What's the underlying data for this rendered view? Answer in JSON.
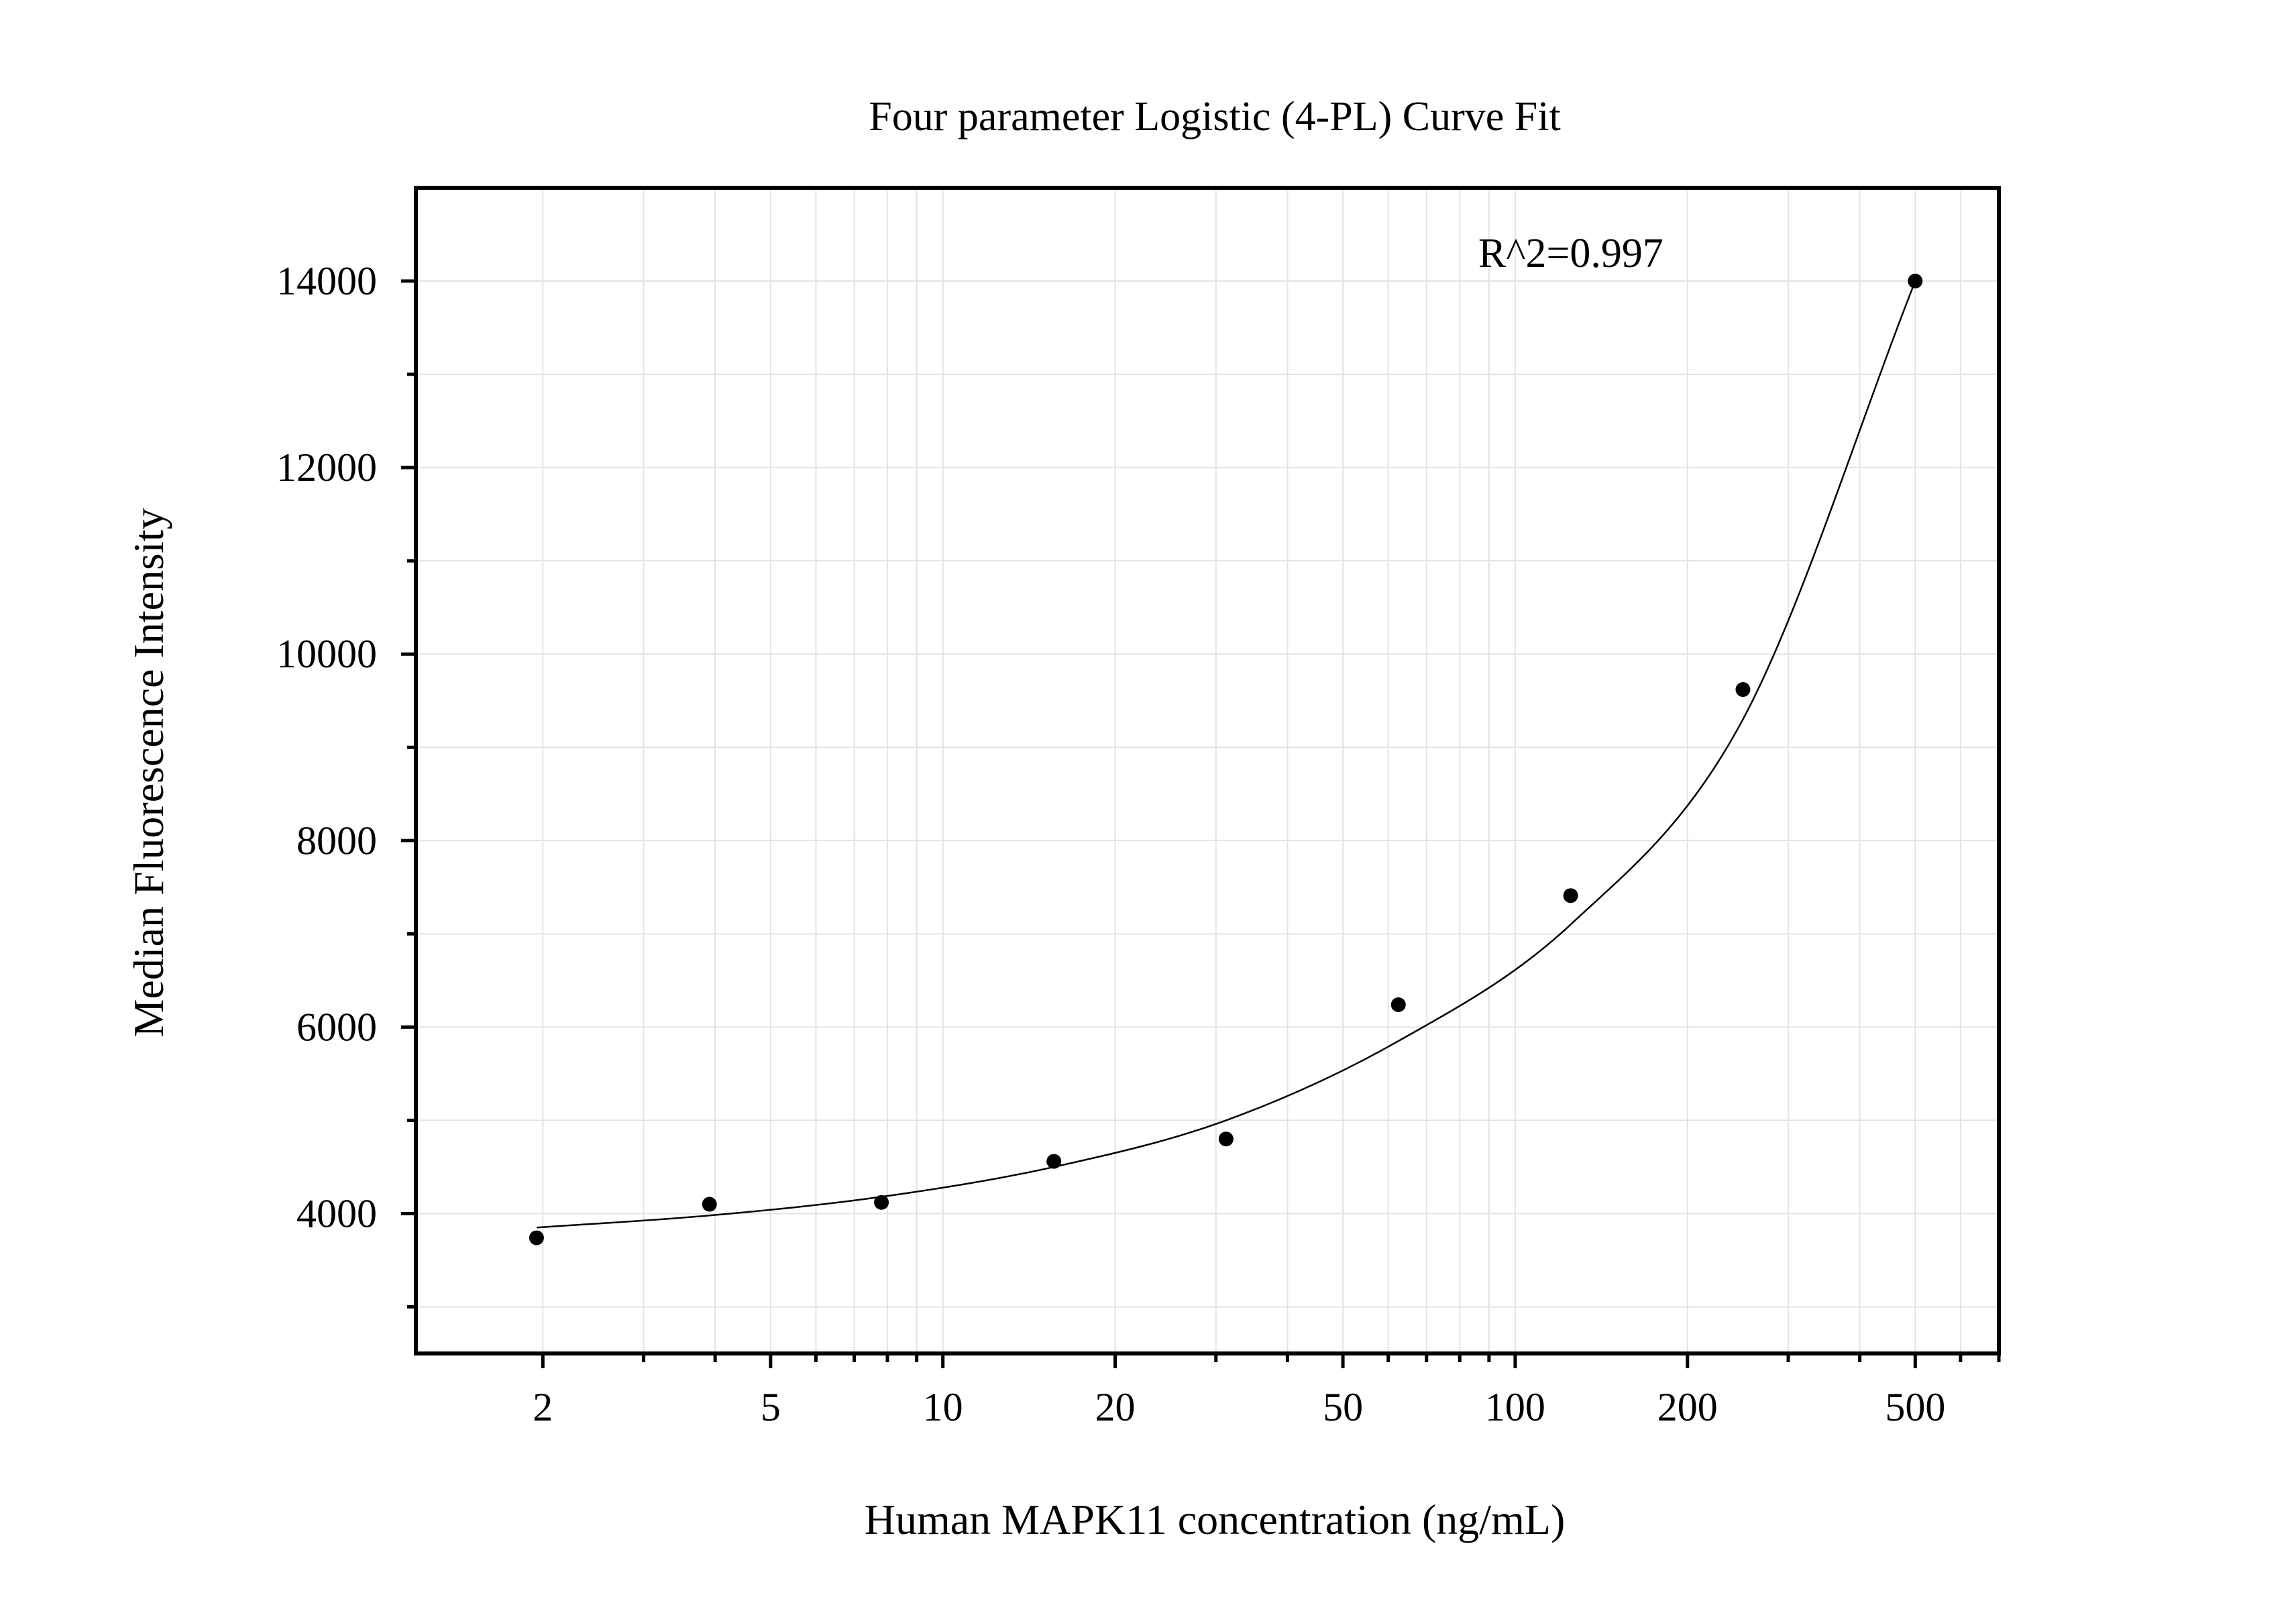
{
  "chart_data": {
    "type": "scatter",
    "title": "Four parameter Logistic (4-PL) Curve Fit",
    "xlabel": "Human MAPK11 concentration (ng/mL)",
    "ylabel": "Median Fluorescence Intensity",
    "x_scale": "log",
    "xlim": [
      1.2,
      700
    ],
    "ylim": [
      2500,
      15000
    ],
    "x_ticks": [
      2,
      5,
      10,
      20,
      50,
      100,
      200,
      500
    ],
    "x_tick_labels": [
      "2",
      "5",
      "10",
      "20",
      "50",
      "100",
      "200",
      "500"
    ],
    "y_ticks": [
      4000,
      6000,
      8000,
      10000,
      12000,
      14000
    ],
    "y_tick_labels": [
      "4000",
      "6000",
      "8000",
      "10000",
      "12000",
      "14000"
    ],
    "grid": true,
    "annotation": "R^2=0.997",
    "series": [
      {
        "type": "scatter",
        "x": [
          1.95,
          3.91,
          7.81,
          15.63,
          31.25,
          62.5,
          125,
          250,
          500
        ],
        "y": [
          3740,
          4100,
          4120,
          4560,
          4800,
          6240,
          7410,
          9620,
          14000
        ]
      },
      {
        "type": "line",
        "fit": "4-PL",
        "x": [
          1.95,
          3.91,
          7.81,
          15.63,
          31.25,
          62.5,
          125,
          250,
          500
        ],
        "y": [
          3850,
          3980,
          4180,
          4500,
          5000,
          5850,
          7100,
          9300,
          14000
        ]
      }
    ]
  }
}
